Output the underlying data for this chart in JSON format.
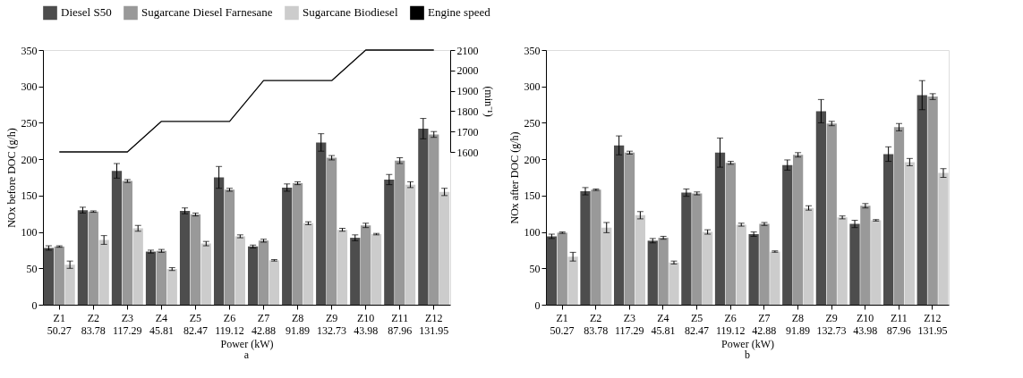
{
  "chart_data": [
    {
      "type": "bar",
      "categories": [
        "Z1\n50.27",
        "Z2\n83.78",
        "Z3\n117.29",
        "Z4\n45.81",
        "Z5\n82.47",
        "Z6\n119.12",
        "Z7\n42.88",
        "Z8\n91.89",
        "Z9\n132.73",
        "Z10\n43.98",
        "Z11\n87.96",
        "Z12\n131.95"
      ],
      "xlabel": "Power (kW)",
      "ylabel": "NOx before DOC (g/h)",
      "y2label": "(min⁻¹)",
      "annotations": [
        "a"
      ],
      "ylim": [
        0,
        350
      ],
      "yticks": [
        0,
        50,
        100,
        150,
        200,
        250,
        300,
        350
      ],
      "y2lim": [
        1600,
        2100
      ],
      "y2ticks": [
        1600,
        1700,
        1800,
        1900,
        2000,
        2100
      ],
      "legend": "top",
      "grid": false,
      "series": [
        {
          "name": "Diesel S50",
          "color": "#4d4d4d",
          "values": [
            78,
            130,
            184,
            73,
            129,
            175,
            80,
            161,
            223,
            92,
            172,
            242
          ],
          "errors": [
            3,
            4,
            10,
            2,
            4,
            15,
            2,
            5,
            12,
            4,
            7,
            14
          ]
        },
        {
          "name": "Sugarcane Diesel Farnesane",
          "color": "#999999",
          "values": [
            80,
            128,
            170,
            74,
            124,
            158,
            88,
            167,
            202,
            109,
            198,
            234
          ],
          "errors": [
            1,
            1,
            2,
            2,
            2,
            2,
            2,
            2,
            3,
            3,
            4,
            4
          ]
        },
        {
          "name": "Sugarcane Biodiesel",
          "color": "#cccccc",
          "values": [
            55,
            89,
            105,
            49,
            84,
            94,
            61,
            112,
            103,
            97,
            165,
            155
          ],
          "errors": [
            5,
            6,
            4,
            2,
            3,
            2,
            1,
            2,
            2,
            1,
            4,
            5
          ]
        },
        {
          "name": "Engine speed",
          "type": "line",
          "axis": "y2",
          "color": "#000000",
          "values": [
            1600,
            1600,
            1600,
            1750,
            1750,
            1750,
            1950,
            1950,
            1950,
            2100,
            2100,
            2100
          ]
        }
      ]
    },
    {
      "type": "bar",
      "categories": [
        "Z1\n50.27",
        "Z2\n83.78",
        "Z3\n117.29",
        "Z4\n45.81",
        "Z5\n82.47",
        "Z6\n119.12",
        "Z7\n42.88",
        "Z8\n91.89",
        "Z9\n132.73",
        "Z10\n43.98",
        "Z11\n87.96",
        "Z12\n131.95"
      ],
      "xlabel": "Power (kW)",
      "ylabel": "NOx after DOC (g/h)",
      "annotations": [
        "b"
      ],
      "ylim": [
        0,
        350
      ],
      "yticks": [
        0,
        50,
        100,
        150,
        200,
        250,
        300,
        350
      ],
      "grid": false,
      "series": [
        {
          "color": "#4d4d4d",
          "values": [
            94,
            156,
            219,
            88,
            154,
            209,
            97,
            192,
            266,
            111,
            207,
            288
          ],
          "errors": [
            3,
            5,
            13,
            3,
            5,
            20,
            3,
            7,
            16,
            5,
            10,
            20
          ]
        },
        {
          "color": "#999999",
          "values": [
            99,
            158,
            209,
            92,
            153,
            195,
            111,
            206,
            249,
            136,
            244,
            286
          ],
          "errors": [
            1,
            1,
            2,
            2,
            2,
            2,
            2,
            3,
            3,
            3,
            5,
            4
          ]
        },
        {
          "color": "#cccccc",
          "values": [
            66,
            106,
            123,
            58,
            100,
            110,
            73,
            133,
            120,
            116,
            196,
            181
          ],
          "errors": [
            6,
            7,
            5,
            2,
            3,
            2,
            1,
            3,
            2,
            1,
            5,
            6
          ]
        }
      ]
    }
  ]
}
